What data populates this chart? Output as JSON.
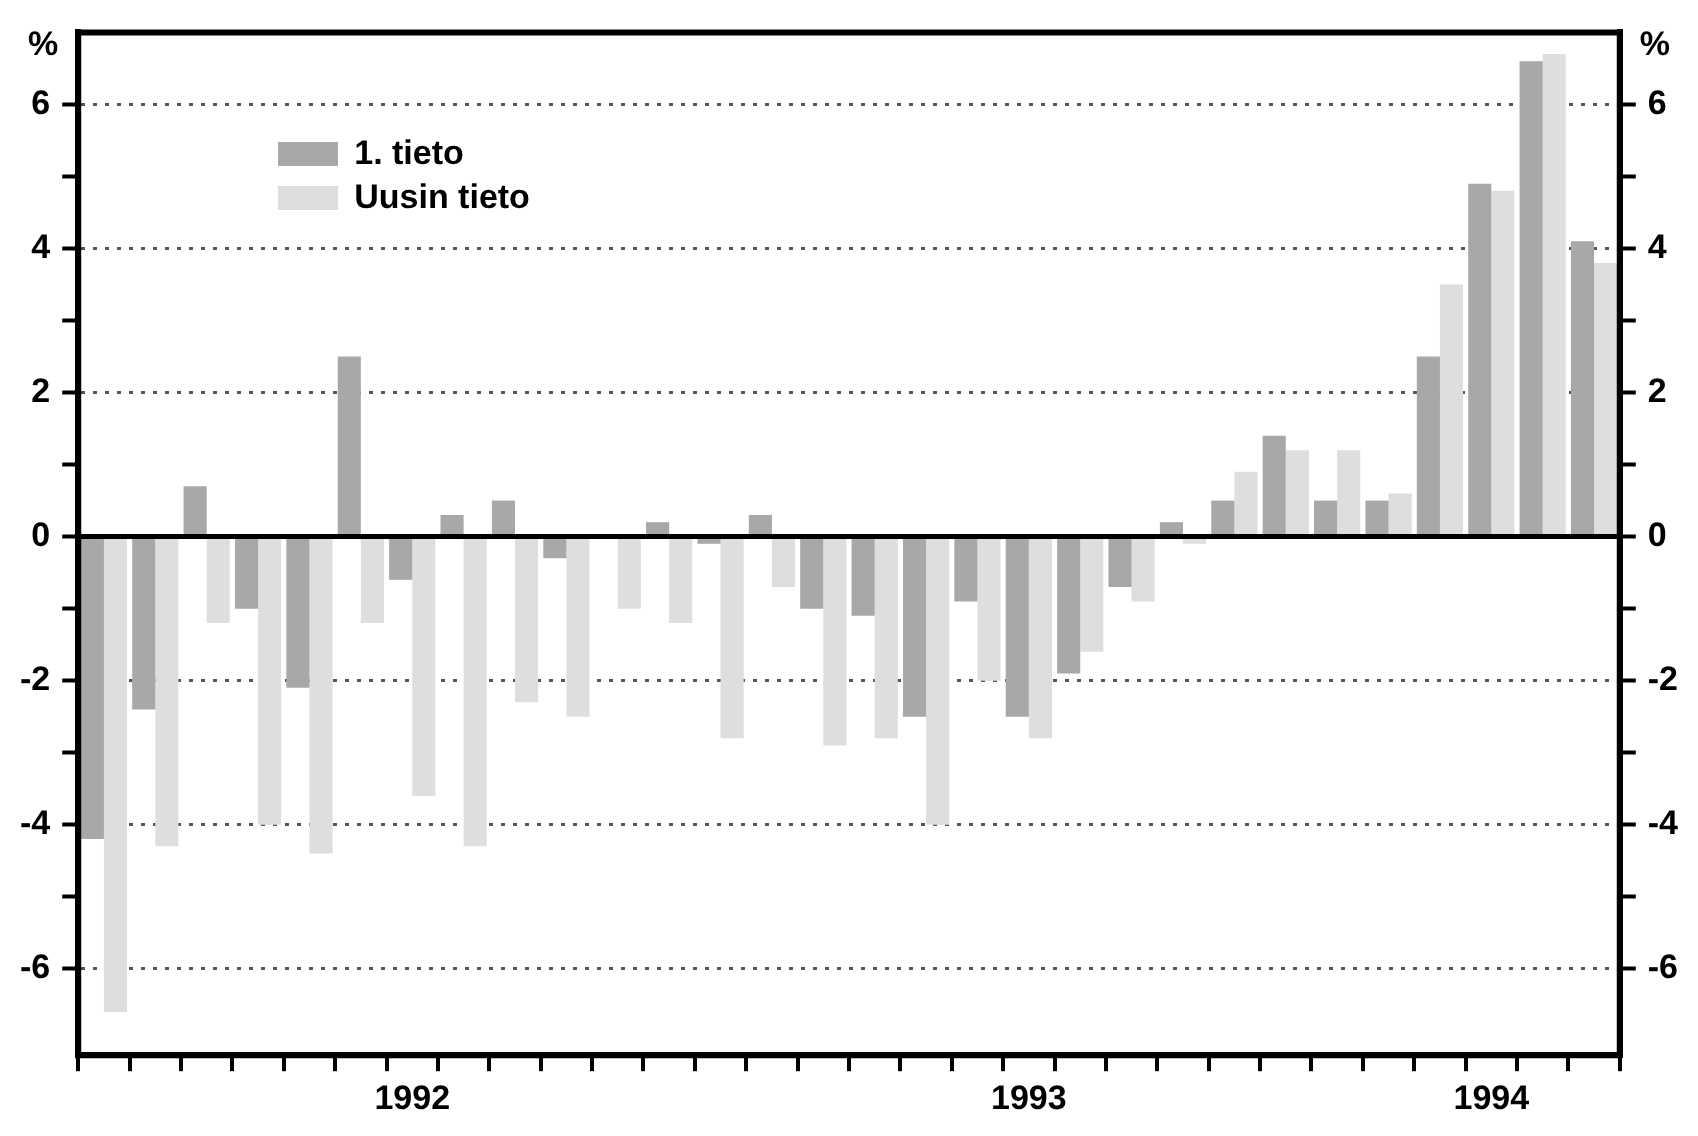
{
  "chart_data": {
    "type": "bar",
    "ylabel": "%",
    "y2label": "%",
    "categories": [
      null,
      null,
      null,
      null,
      null,
      null,
      "1992",
      null,
      null,
      null,
      null,
      null,
      null,
      null,
      null,
      null,
      null,
      null,
      "1993",
      null,
      null,
      null,
      null,
      null,
      null,
      null,
      null,
      "1994",
      null,
      null
    ],
    "series": [
      {
        "name": "1. tieto",
        "color": "#a8a8a8",
        "values": [
          -4.2,
          -2.4,
          0.7,
          -1.0,
          -2.1,
          2.5,
          -0.6,
          0.3,
          0.5,
          -0.3,
          null,
          0.2,
          -0.1,
          0.3,
          -1.0,
          -1.1,
          -2.5,
          -0.9,
          -2.5,
          -1.9,
          -0.7,
          0.2,
          0.5,
          1.4,
          0.5,
          0.5,
          2.5,
          4.9,
          6.6,
          4.1
        ]
      },
      {
        "name": "Uusin tieto",
        "color": "#dedede",
        "values": [
          -6.6,
          -4.3,
          -1.2,
          -4.0,
          -4.4,
          -1.2,
          -3.6,
          -4.3,
          -2.3,
          -2.5,
          -1.0,
          -1.2,
          -2.8,
          -0.7,
          -2.9,
          -2.8,
          -4.0,
          -2.0,
          -2.8,
          -1.6,
          -0.9,
          -0.1,
          0.9,
          1.2,
          1.2,
          0.6,
          3.5,
          4.8,
          6.7,
          3.8
        ]
      }
    ],
    "ylim": [
      -7.2,
      7
    ],
    "yticks": [
      -6,
      {
        "value": -5,
        "label": null
      },
      -4,
      {
        "value": -3,
        "label": null
      },
      -2,
      {
        "value": -1,
        "label": null
      },
      0,
      {
        "value": 1,
        "label": null
      },
      2,
      {
        "value": 3,
        "label": null
      },
      4,
      {
        "value": 5,
        "label": null
      },
      6
    ],
    "y2lim": [
      -7.2,
      7
    ],
    "y2ticks": [
      -6,
      {
        "value": -5,
        "label": null
      },
      -4,
      {
        "value": -3,
        "label": null
      },
      -2,
      {
        "value": -1,
        "label": null
      },
      0,
      {
        "value": 1,
        "label": null
      },
      2,
      {
        "value": 3,
        "label": null
      },
      4,
      {
        "value": 5,
        "label": null
      },
      6
    ],
    "grid": "y",
    "legend": "top left"
  }
}
